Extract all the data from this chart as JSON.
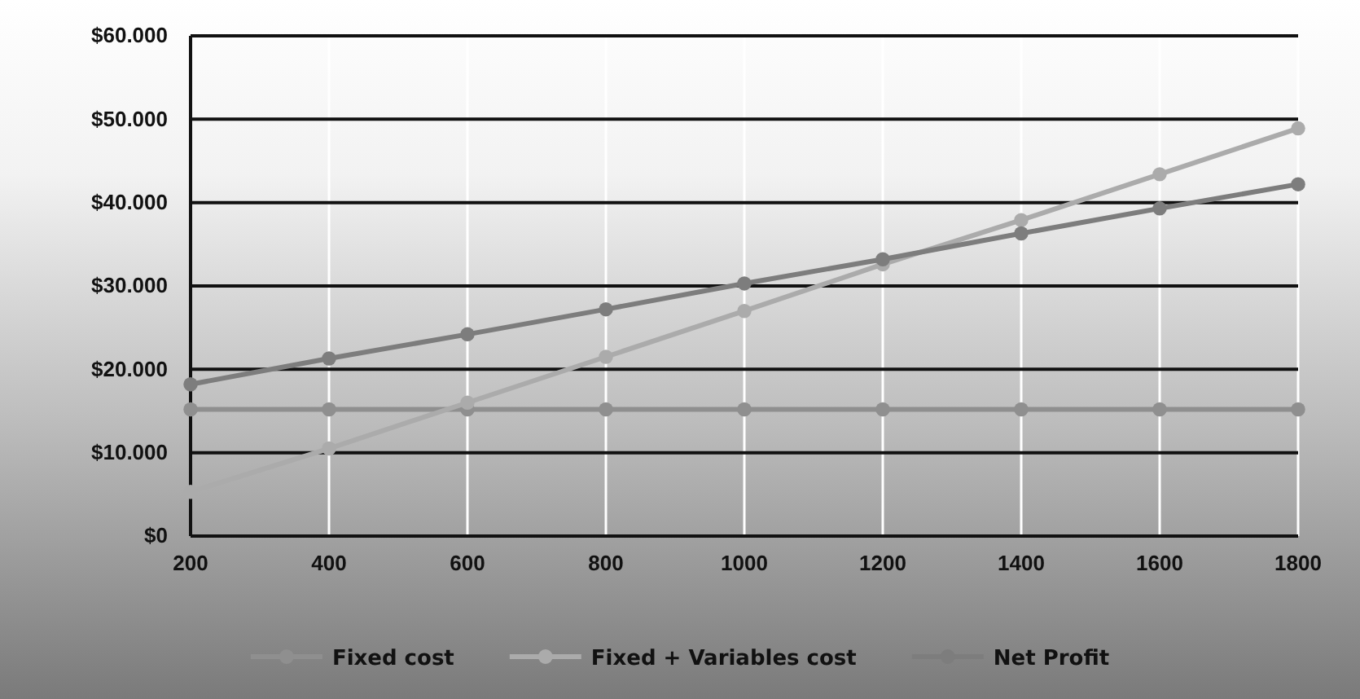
{
  "chart_data": {
    "type": "line",
    "x": [
      200,
      400,
      600,
      800,
      1000,
      1200,
      1400,
      1600,
      1800
    ],
    "xlim": [
      200,
      1800
    ],
    "xticks": [
      200,
      400,
      600,
      800,
      1000,
      1200,
      1400,
      1600,
      1800
    ],
    "ylim": [
      0,
      60000
    ],
    "yticks": [
      {
        "value": 0,
        "label": "$0"
      },
      {
        "value": 10000,
        "label": "$10.000"
      },
      {
        "value": 20000,
        "label": "$20.000"
      },
      {
        "value": 30000,
        "label": "$30.000"
      },
      {
        "value": 40000,
        "label": "$40.000"
      },
      {
        "value": 50000,
        "label": "$50.000"
      },
      {
        "value": 60000,
        "label": "$60.000"
      }
    ],
    "grid": true,
    "legend": "bottom",
    "marker": "circle",
    "series": [
      {
        "name": "Fixed cost",
        "color": "#8f8f8f",
        "values": [
          15200,
          15200,
          15200,
          15200,
          15200,
          15200,
          15200,
          15200,
          15200
        ]
      },
      {
        "name": "Fixed + Variables cost",
        "color": "#ababab",
        "values": [
          5300,
          10500,
          16000,
          21500,
          27000,
          32600,
          37900,
          43400,
          48900
        ]
      },
      {
        "name": "Net Profit",
        "color": "#7d7d7d",
        "values": [
          18200,
          21300,
          24200,
          27200,
          30300,
          33200,
          36300,
          39300,
          42200
        ]
      }
    ]
  }
}
